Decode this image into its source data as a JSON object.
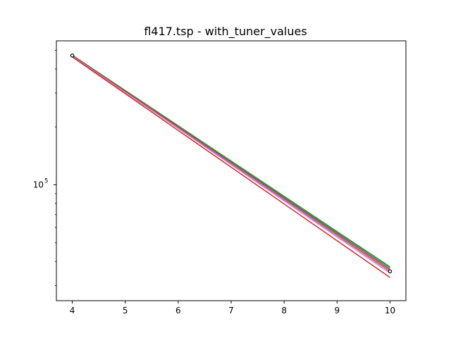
{
  "chart_data": {
    "type": "line",
    "title": "fl417.tsp - with_tuner_values",
    "xlabel": "",
    "ylabel": "",
    "xlim": [
      3.7,
      10.3
    ],
    "ylim": [
      25000,
      560000
    ],
    "yscale": "log",
    "grid": false,
    "xticks": [
      4,
      5,
      6,
      7,
      8,
      9,
      10
    ],
    "yticks": [
      {
        "value": 100000,
        "base": "10",
        "exp": "5"
      }
    ],
    "series": [
      {
        "color": "#1f77b4",
        "x": [
          4,
          10
        ],
        "y": [
          470000,
          37200
        ]
      },
      {
        "color": "#ff7f0e",
        "x": [
          4,
          10
        ],
        "y": [
          465000,
          36000
        ]
      },
      {
        "color": "#2ca02c",
        "x": [
          4,
          10
        ],
        "y": [
          472000,
          37500
        ]
      },
      {
        "color": "#9467bd",
        "x": [
          4,
          10
        ],
        "y": [
          468000,
          35500
        ]
      },
      {
        "color": "#8c564b",
        "x": [
          4,
          10
        ],
        "y": [
          470000,
          36500
        ]
      },
      {
        "color": "#e377c2",
        "x": [
          4,
          10
        ],
        "y": [
          466000,
          34800
        ]
      },
      {
        "color": "#d62728",
        "x": [
          4,
          10
        ],
        "y": [
          462000,
          33000
        ]
      }
    ],
    "markers": [
      {
        "x": 4,
        "y": 470000
      },
      {
        "x": 10,
        "y": 35500
      }
    ]
  }
}
